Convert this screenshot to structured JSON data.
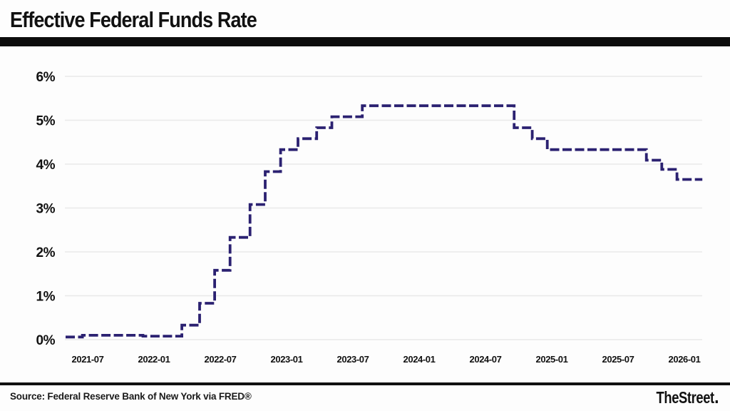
{
  "page": {
    "title": "Effective Federal Funds Rate",
    "source_line": "Source: Federal Reserve Bank of New York via FRED®",
    "brand": "TheStreet",
    "colors": {
      "line": "#2b2171",
      "grid": "#e9e9e9",
      "text": "#111111",
      "rule": "#0d0d0d",
      "background": "#fdfdfd"
    }
  },
  "chart_data": {
    "type": "line",
    "subtype": "step-after",
    "line_style": "dashed",
    "title": "Effective Federal Funds Rate",
    "xlabel": "",
    "ylabel": "",
    "ylim": [
      0,
      6
    ],
    "x_range": [
      "2021-05",
      "2026-02"
    ],
    "grid": true,
    "legend_position": "none",
    "y_ticks": [
      "0%",
      "1%",
      "2%",
      "3%",
      "4%",
      "5%",
      "6%"
    ],
    "x_ticks": [
      "2021-07",
      "2022-01",
      "2022-07",
      "2023-01",
      "2023-07",
      "2024-01",
      "2024-07",
      "2025-01",
      "2025-07",
      "2026-01"
    ],
    "series": [
      {
        "color": "#2b2171",
        "points": [
          [
            "2021-05-01",
            0.06
          ],
          [
            "2021-06-17",
            0.1
          ],
          [
            "2021-12-01",
            0.08
          ],
          [
            "2022-03-17",
            0.33
          ],
          [
            "2022-05-05",
            0.83
          ],
          [
            "2022-06-16",
            1.58
          ],
          [
            "2022-07-28",
            2.33
          ],
          [
            "2022-09-22",
            3.08
          ],
          [
            "2022-11-03",
            3.83
          ],
          [
            "2022-12-15",
            4.33
          ],
          [
            "2023-02-02",
            4.58
          ],
          [
            "2023-03-23",
            4.83
          ],
          [
            "2023-05-04",
            5.08
          ],
          [
            "2023-07-27",
            5.33
          ],
          [
            "2024-09-19",
            4.83
          ],
          [
            "2024-11-08",
            4.58
          ],
          [
            "2024-12-19",
            4.33
          ],
          [
            "2025-09-18",
            4.09
          ],
          [
            "2025-10-30",
            3.88
          ],
          [
            "2025-12-11",
            3.65
          ],
          [
            "2026-02-20",
            3.65
          ]
        ]
      }
    ]
  }
}
